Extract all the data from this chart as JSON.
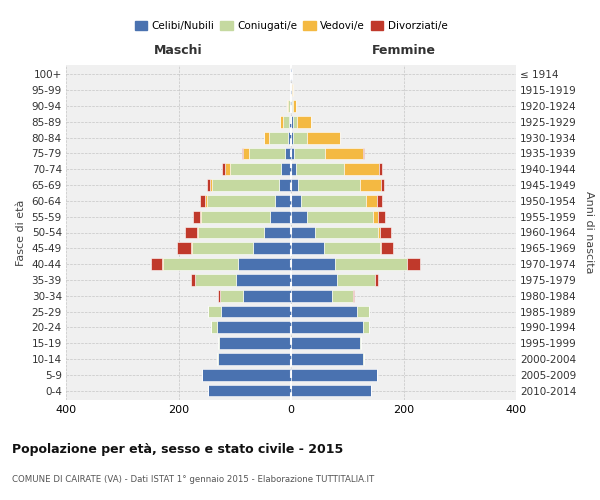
{
  "age_groups": [
    "100+",
    "95-99",
    "90-94",
    "85-89",
    "80-84",
    "75-79",
    "70-74",
    "65-69",
    "60-64",
    "55-59",
    "50-54",
    "45-49",
    "40-44",
    "35-39",
    "30-34",
    "25-29",
    "20-24",
    "15-19",
    "10-14",
    "5-9",
    "0-4"
  ],
  "birth_years": [
    "≤ 1914",
    "1915-1919",
    "1920-1924",
    "1925-1929",
    "1930-1934",
    "1935-1939",
    "1940-1944",
    "1945-1949",
    "1950-1954",
    "1955-1959",
    "1960-1964",
    "1965-1969",
    "1970-1974",
    "1975-1979",
    "1980-1984",
    "1985-1989",
    "1990-1994",
    "1995-1999",
    "2000-2004",
    "2005-2009",
    "2010-2014"
  ],
  "males": {
    "celibi": [
      1,
      1,
      2,
      3,
      5,
      10,
      18,
      22,
      28,
      38,
      48,
      68,
      95,
      98,
      85,
      125,
      132,
      128,
      130,
      158,
      148
    ],
    "coniugati": [
      0,
      1,
      4,
      12,
      35,
      65,
      90,
      118,
      122,
      122,
      118,
      108,
      132,
      72,
      42,
      22,
      10,
      2,
      2,
      0,
      0
    ],
    "vedovi": [
      0,
      0,
      1,
      4,
      8,
      10,
      10,
      4,
      3,
      2,
      2,
      2,
      2,
      1,
      0,
      0,
      0,
      0,
      0,
      0,
      0
    ],
    "divorziati": [
      0,
      0,
      0,
      0,
      0,
      2,
      5,
      5,
      8,
      12,
      20,
      25,
      20,
      6,
      2,
      1,
      0,
      0,
      0,
      0,
      0
    ]
  },
  "females": {
    "nubili": [
      1,
      1,
      2,
      3,
      4,
      5,
      9,
      12,
      18,
      28,
      42,
      58,
      78,
      82,
      72,
      118,
      128,
      122,
      128,
      152,
      142
    ],
    "coniugate": [
      0,
      1,
      2,
      8,
      25,
      55,
      85,
      110,
      115,
      118,
      112,
      100,
      128,
      68,
      38,
      20,
      10,
      2,
      2,
      0,
      0
    ],
    "vedove": [
      0,
      2,
      5,
      25,
      58,
      68,
      62,
      38,
      20,
      9,
      5,
      2,
      1,
      0,
      0,
      0,
      0,
      0,
      0,
      0,
      0
    ],
    "divorziate": [
      0,
      0,
      0,
      0,
      0,
      2,
      5,
      5,
      8,
      12,
      18,
      22,
      22,
      5,
      2,
      1,
      0,
      0,
      0,
      0,
      0
    ]
  },
  "colors": {
    "celibi": "#4a72b0",
    "coniugati": "#c5d9a0",
    "vedovi": "#f4b942",
    "divorziati": "#c0392b"
  },
  "title": "Popolazione per età, sesso e stato civile - 2015",
  "subtitle": "COMUNE DI CAIRATE (VA) - Dati ISTAT 1° gennaio 2015 - Elaborazione TUTTITALIA.IT",
  "xlabel_left": "Maschi",
  "xlabel_right": "Femmine",
  "ylabel_left": "Fasce di età",
  "ylabel_right": "Anni di nascita",
  "xlim": 400,
  "legend_labels": [
    "Celibi/Nubili",
    "Coniugati/e",
    "Vedovi/e",
    "Divorziati/e"
  ],
  "bg_color": "#ffffff",
  "plot_bg_color": "#f0f0f0"
}
